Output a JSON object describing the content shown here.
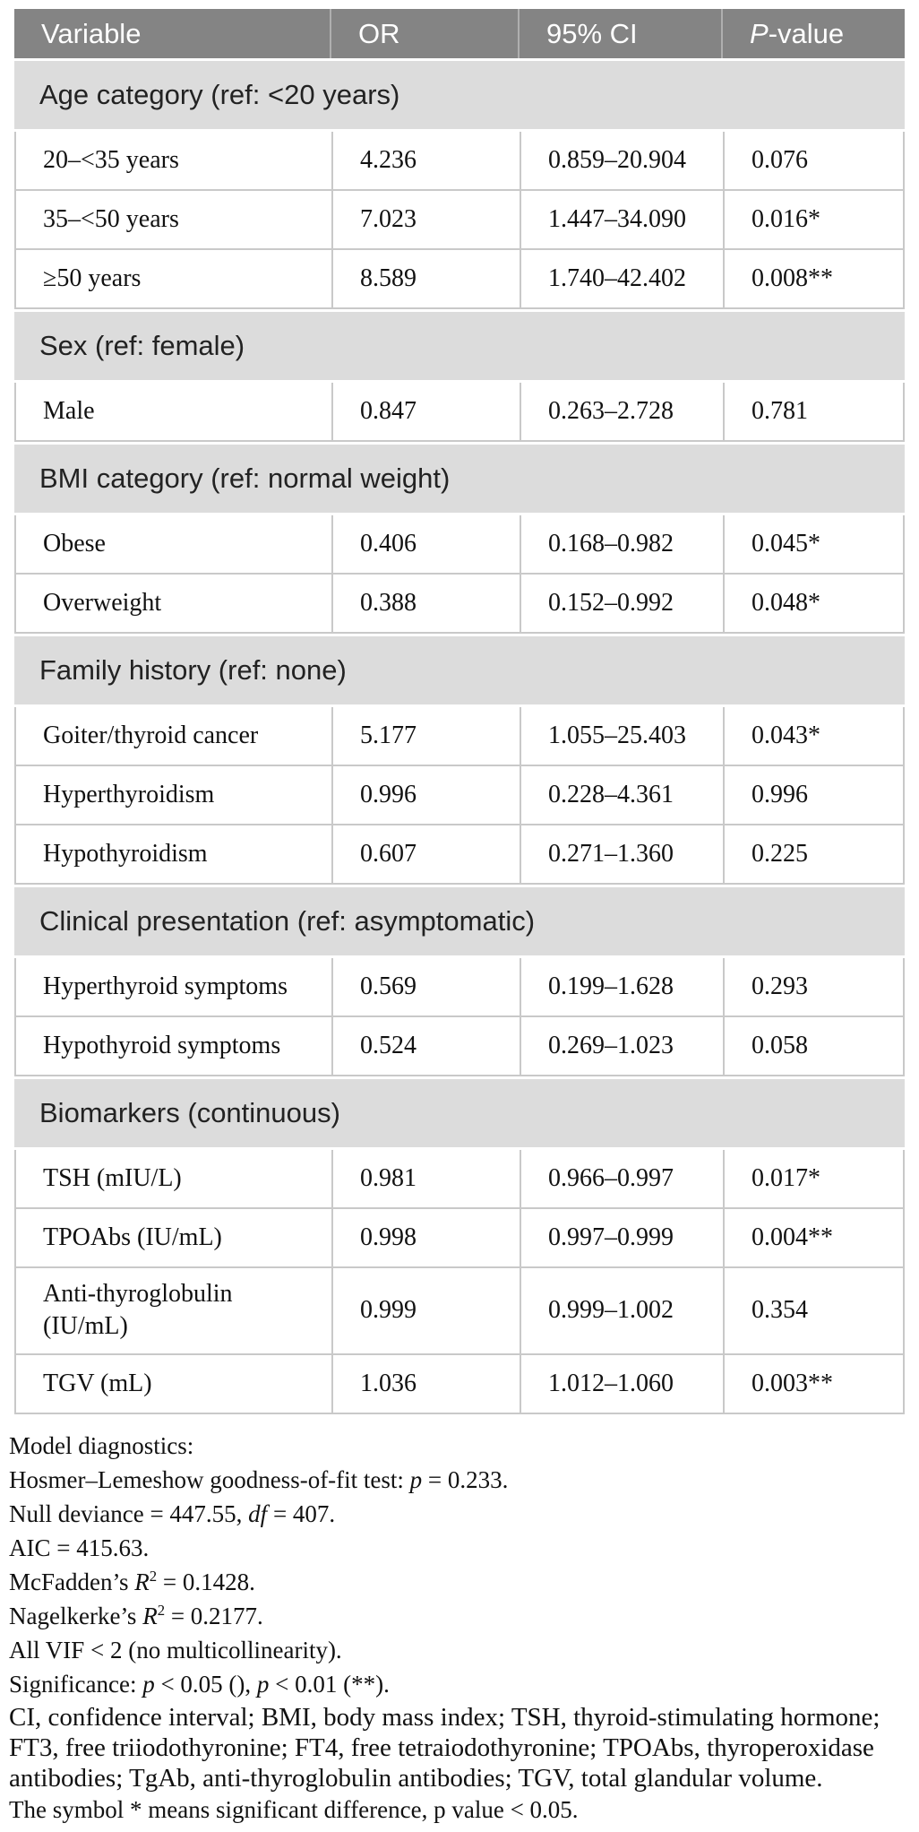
{
  "colors": {
    "header_bg": "#848484",
    "header_text": "#ffffff",
    "section_bg": "#dcdcdc",
    "row_bg": "#ffffff",
    "grid_line": "#c9c9c9",
    "body_text": "#111111",
    "section_text": "#222222"
  },
  "table": {
    "header": [
      [
        {
          "t": "Variable"
        }
      ],
      [
        {
          "t": "OR"
        }
      ],
      [
        {
          "t": "95% CI"
        }
      ],
      [
        {
          "t": "P",
          "i": true
        },
        {
          "t": "-value"
        }
      ]
    ],
    "rows": [
      {
        "type": "section",
        "label": "Age category (ref: <20 years)"
      },
      {
        "type": "data",
        "variable": "20–<35 years",
        "or": "4.236",
        "ci": "0.859–20.904",
        "p": "0.076"
      },
      {
        "type": "data",
        "variable": "35–<50 years",
        "or": "7.023",
        "ci": "1.447–34.090",
        "p": "0.016*"
      },
      {
        "type": "data",
        "variable": "≥50 years",
        "or": "8.589",
        "ci": "1.740–42.402",
        "p": "0.008**"
      },
      {
        "type": "section",
        "label": "Sex (ref: female)"
      },
      {
        "type": "data",
        "variable": "Male",
        "or": "0.847",
        "ci": "0.263–2.728",
        "p": "0.781"
      },
      {
        "type": "section",
        "label": "BMI category (ref: normal weight)"
      },
      {
        "type": "data",
        "variable": "Obese",
        "or": "0.406",
        "ci": "0.168–0.982",
        "p": "0.045*"
      },
      {
        "type": "data",
        "variable": "Overweight",
        "or": "0.388",
        "ci": "0.152–0.992",
        "p": "0.048*"
      },
      {
        "type": "section",
        "label": "Family history (ref: none)"
      },
      {
        "type": "data",
        "variable": "Goiter/thyroid cancer",
        "or": "5.177",
        "ci": "1.055–25.403",
        "p": "0.043*"
      },
      {
        "type": "data",
        "variable": "Hyperthyroidism",
        "or": "0.996",
        "ci": "0.228–4.361",
        "p": "0.996"
      },
      {
        "type": "data",
        "variable": "Hypothyroidism",
        "or": "0.607",
        "ci": "0.271–1.360",
        "p": "0.225"
      },
      {
        "type": "section",
        "label": "Clinical presentation (ref: asymptomatic)"
      },
      {
        "type": "data",
        "variable": "Hyperthyroid symptoms",
        "or": "0.569",
        "ci": "0.199–1.628",
        "p": "0.293"
      },
      {
        "type": "data",
        "variable": "Hypothyroid symptoms",
        "or": "0.524",
        "ci": "0.269–1.023",
        "p": "0.058"
      },
      {
        "type": "section",
        "label": "Biomarkers (continuous)"
      },
      {
        "type": "data",
        "variable": "TSH (mIU/L)",
        "or": "0.981",
        "ci": "0.966–0.997",
        "p": "0.017*"
      },
      {
        "type": "data",
        "variable": "TPOAbs (IU/mL)",
        "or": "0.998",
        "ci": "0.997–0.999",
        "p": "0.004**"
      },
      {
        "type": "data",
        "variable": "Anti-thyroglobulin (IU/mL)",
        "or": "0.999",
        "ci": "0.999–1.002",
        "p": "0.354"
      },
      {
        "type": "data",
        "variable": "TGV (mL)",
        "or": "1.036",
        "ci": "1.012–1.060",
        "p": "0.003**"
      }
    ]
  },
  "footnotes": {
    "lines": [
      {
        "style": "plain",
        "segs": [
          {
            "t": "Model diagnostics:"
          }
        ]
      },
      {
        "style": "plain",
        "segs": [
          {
            "t": "Hosmer–Lemeshow goodness-of-fit test: "
          },
          {
            "t": "p",
            "i": true
          },
          {
            "t": " = 0.233."
          }
        ]
      },
      {
        "style": "plain",
        "segs": [
          {
            "t": "Null deviance = 447.55, "
          },
          {
            "t": "df",
            "i": true
          },
          {
            "t": " = 407."
          }
        ]
      },
      {
        "style": "plain",
        "segs": [
          {
            "t": "AIC = 415.63."
          }
        ]
      },
      {
        "style": "plain",
        "segs": [
          {
            "t": "McFadden’s "
          },
          {
            "t": "R",
            "i": true
          },
          {
            "t": "2",
            "sup": true
          },
          {
            "t": " = 0.1428."
          }
        ]
      },
      {
        "style": "plain",
        "segs": [
          {
            "t": "Nagelkerke’s "
          },
          {
            "t": "R",
            "i": true
          },
          {
            "t": "2",
            "sup": true
          },
          {
            "t": " = 0.2177."
          }
        ]
      },
      {
        "style": "plain",
        "segs": [
          {
            "t": "All VIF < 2 (no multicollinearity)."
          }
        ]
      },
      {
        "style": "plain",
        "segs": [
          {
            "t": "Significance: "
          },
          {
            "t": "p",
            "i": true
          },
          {
            "t": " < 0.05 (), "
          },
          {
            "t": "p",
            "i": true
          },
          {
            "t": " < 0.01 (**)."
          }
        ]
      },
      {
        "style": "abbr",
        "segs": [
          {
            "t": "CI, confidence interval; BMI, body mass index; TSH, thyroid-stimulating hormone; FT3, free triiodothyronine; FT4, free tetraiodothyronine; TPOAbs, thyroperoxidase antibodies; TgAb, anti-thyroglobulin antibodies; TGV, total glandular volume."
          }
        ]
      },
      {
        "style": "note",
        "segs": [
          {
            "t": "The symbol * means significant difference, p value < 0.05."
          }
        ]
      }
    ]
  }
}
